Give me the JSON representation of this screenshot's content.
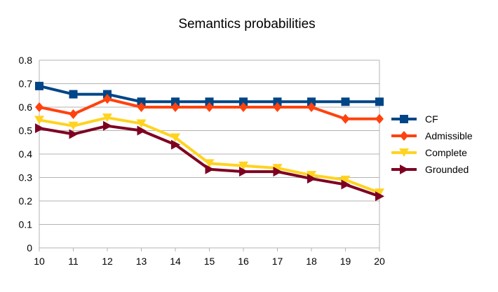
{
  "chart_data": {
    "type": "line",
    "title": "Semantics probabilities",
    "xlabel": "",
    "ylabel": "",
    "x": [
      10,
      11,
      12,
      13,
      14,
      15,
      16,
      17,
      18,
      19,
      20
    ],
    "ylim": [
      0,
      0.8
    ],
    "yticks": [
      "0",
      "0.1",
      "0.2",
      "0.3",
      "0.4",
      "0.5",
      "0.6",
      "0.7",
      "0.8"
    ],
    "grid": "horizontal",
    "legend": "right",
    "series": [
      {
        "name": "CF",
        "color": "#004586",
        "marker": "square",
        "values": [
          0.69,
          0.655,
          0.655,
          0.623,
          0.623,
          0.623,
          0.623,
          0.623,
          0.623,
          0.623,
          0.623
        ]
      },
      {
        "name": "Admissible",
        "color": "#ff420e",
        "marker": "diamond",
        "values": [
          0.6,
          0.57,
          0.635,
          0.6,
          0.6,
          0.6,
          0.6,
          0.6,
          0.6,
          0.55,
          0.55
        ]
      },
      {
        "name": "Complete",
        "color": "#ffd320",
        "marker": "triangle-down",
        "values": [
          0.545,
          0.52,
          0.555,
          0.53,
          0.47,
          0.36,
          0.35,
          0.34,
          0.31,
          0.29,
          0.235
        ]
      },
      {
        "name": "Grounded",
        "color": "#7e0021",
        "marker": "triangle-right",
        "values": [
          0.51,
          0.485,
          0.52,
          0.5,
          0.44,
          0.335,
          0.325,
          0.325,
          0.295,
          0.27,
          0.22
        ]
      }
    ]
  }
}
